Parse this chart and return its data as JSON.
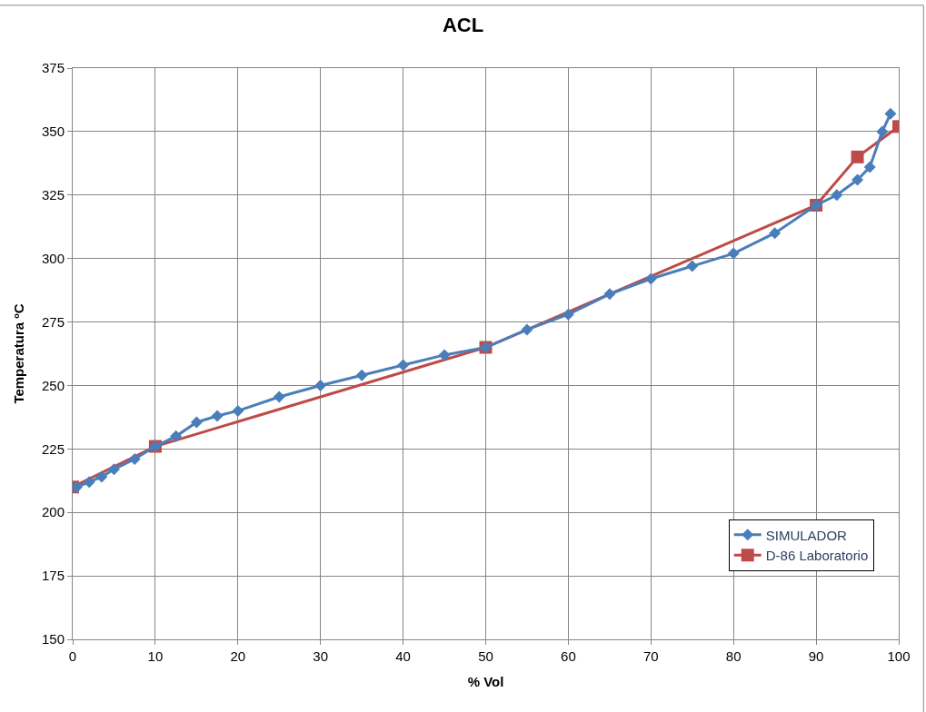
{
  "chart_data": {
    "type": "line",
    "title": "ACL",
    "xlabel": "% Vol",
    "ylabel": "Temperatura ºC",
    "xlim": [
      0,
      100
    ],
    "xticks": [
      0,
      10,
      20,
      30,
      40,
      50,
      60,
      70,
      80,
      90,
      100
    ],
    "ylim": [
      150,
      375
    ],
    "yticks": [
      150,
      175,
      200,
      225,
      250,
      275,
      300,
      325,
      350,
      375
    ],
    "grid": true,
    "legend": "bottom right",
    "series": [
      {
        "name": "SIMULADOR",
        "color": "#4a7ebb",
        "marker": "diamond",
        "x": [
          0.5,
          2,
          3.5,
          5,
          7.5,
          10,
          12.5,
          15,
          17.5,
          20,
          25,
          30,
          35,
          40,
          45,
          50,
          55,
          60,
          65,
          70,
          75,
          80,
          85,
          90,
          92.5,
          95,
          96.5,
          98,
          99
        ],
        "values": [
          210,
          212,
          214,
          217,
          221,
          226,
          230,
          235.5,
          238,
          240,
          245.5,
          250,
          254,
          258,
          262,
          265,
          272,
          278,
          286,
          292,
          297,
          302,
          310,
          321,
          325,
          331,
          336,
          350,
          357
        ]
      },
      {
        "name": "D-86 Laboratorio",
        "color": "#be4b48",
        "marker": "square",
        "x": [
          0,
          10,
          50,
          90,
          95,
          100
        ],
        "values": [
          210,
          226,
          265,
          321,
          340,
          352
        ]
      }
    ]
  }
}
